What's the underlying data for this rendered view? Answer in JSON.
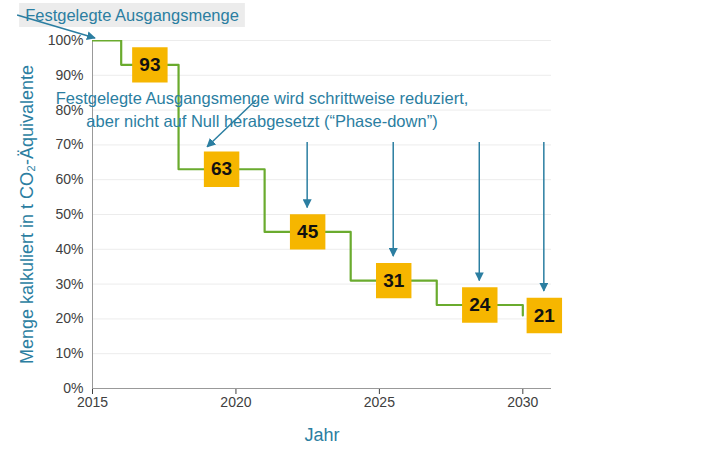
{
  "chart_data": {
    "type": "line",
    "x": [
      2015,
      2016,
      2018,
      2021,
      2024,
      2027,
      2030
    ],
    "values": [
      100,
      93,
      63,
      45,
      31,
      24,
      21
    ],
    "value_labels": [
      null,
      "93",
      "63",
      "45",
      "31",
      "24",
      "21"
    ],
    "data_labels": true,
    "line_style": "step",
    "color": "#6aab2e",
    "xlabel": "Jahr",
    "ylabel": "Menge kalkuliert in t CO₂-Äquivalente",
    "xlim": [
      2015,
      2031
    ],
    "xticks": [
      2015,
      2020,
      2025,
      2030
    ],
    "ylim": [
      0,
      100
    ],
    "yticks": [
      {
        "value": 0,
        "label": "0%"
      },
      {
        "value": 10,
        "label": "10%"
      },
      {
        "value": 20,
        "label": "20%"
      },
      {
        "value": 30,
        "label": "30%"
      },
      {
        "value": 40,
        "label": "40%"
      },
      {
        "value": 50,
        "label": "50%"
      },
      {
        "value": 60,
        "label": "60%"
      },
      {
        "value": 70,
        "label": "70%"
      },
      {
        "value": 80,
        "label": "80%"
      },
      {
        "value": 90,
        "label": "90%"
      },
      {
        "value": 100,
        "label": "100%"
      }
    ],
    "grid": true,
    "annotations": [
      {
        "text": [
          "Festgelegte Ausgangsmenge"
        ]
      },
      {
        "text": [
          "Festgelegte Ausgangsmenge wird schrittweise reduziert,",
          "aber nicht auf Null herabgesetzt (“Phase-down”)"
        ]
      }
    ]
  }
}
